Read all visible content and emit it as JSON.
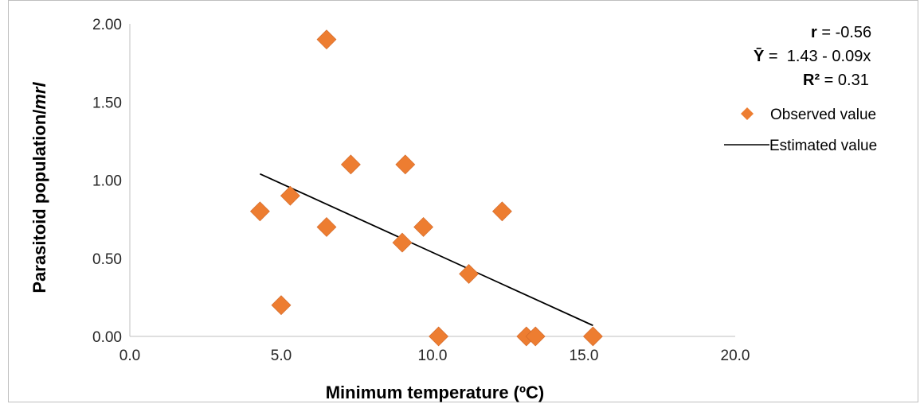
{
  "chart_data": {
    "type": "scatter",
    "xlabel": "Minimum temperature (ºC)",
    "ylabel_main": "Parasitoid population/",
    "ylabel_italic": "mrl",
    "xlim": [
      0,
      20
    ],
    "ylim": [
      0,
      2
    ],
    "x_ticks": [
      "0.0",
      "5.0",
      "10.0",
      "15.0",
      "20.0"
    ],
    "y_ticks": [
      "0.00",
      "0.50",
      "1.00",
      "1.50",
      "2.00"
    ],
    "grid": false,
    "legend_position": "right",
    "series": [
      {
        "name": "Observed value",
        "marker": "diamond",
        "color": "#ED7D31",
        "points": [
          {
            "x": 4.3,
            "y": 0.8
          },
          {
            "x": 5.0,
            "y": 0.2
          },
          {
            "x": 5.3,
            "y": 0.9
          },
          {
            "x": 6.5,
            "y": 1.9
          },
          {
            "x": 6.5,
            "y": 0.7
          },
          {
            "x": 7.3,
            "y": 1.1
          },
          {
            "x": 9.0,
            "y": 0.6
          },
          {
            "x": 9.1,
            "y": 1.1
          },
          {
            "x": 9.7,
            "y": 0.7
          },
          {
            "x": 10.2,
            "y": 0.0
          },
          {
            "x": 11.2,
            "y": 0.4
          },
          {
            "x": 12.3,
            "y": 0.8
          },
          {
            "x": 13.1,
            "y": 0.0
          },
          {
            "x": 13.4,
            "y": 0.0
          },
          {
            "x": 15.3,
            "y": 0.0
          }
        ]
      },
      {
        "name": "Estimated value",
        "type": "line",
        "color": "#000000",
        "points": [
          {
            "x": 4.3,
            "y": 1.04
          },
          {
            "x": 15.3,
            "y": 0.07
          }
        ]
      }
    ],
    "annotations": {
      "r_label": "r",
      "r_value": " = -0.56",
      "eq_label": "Ȳ",
      "eq_value": " =  1.43 - 0.09x",
      "r2_label": "R²",
      "r2_value": " = 0.31"
    }
  }
}
